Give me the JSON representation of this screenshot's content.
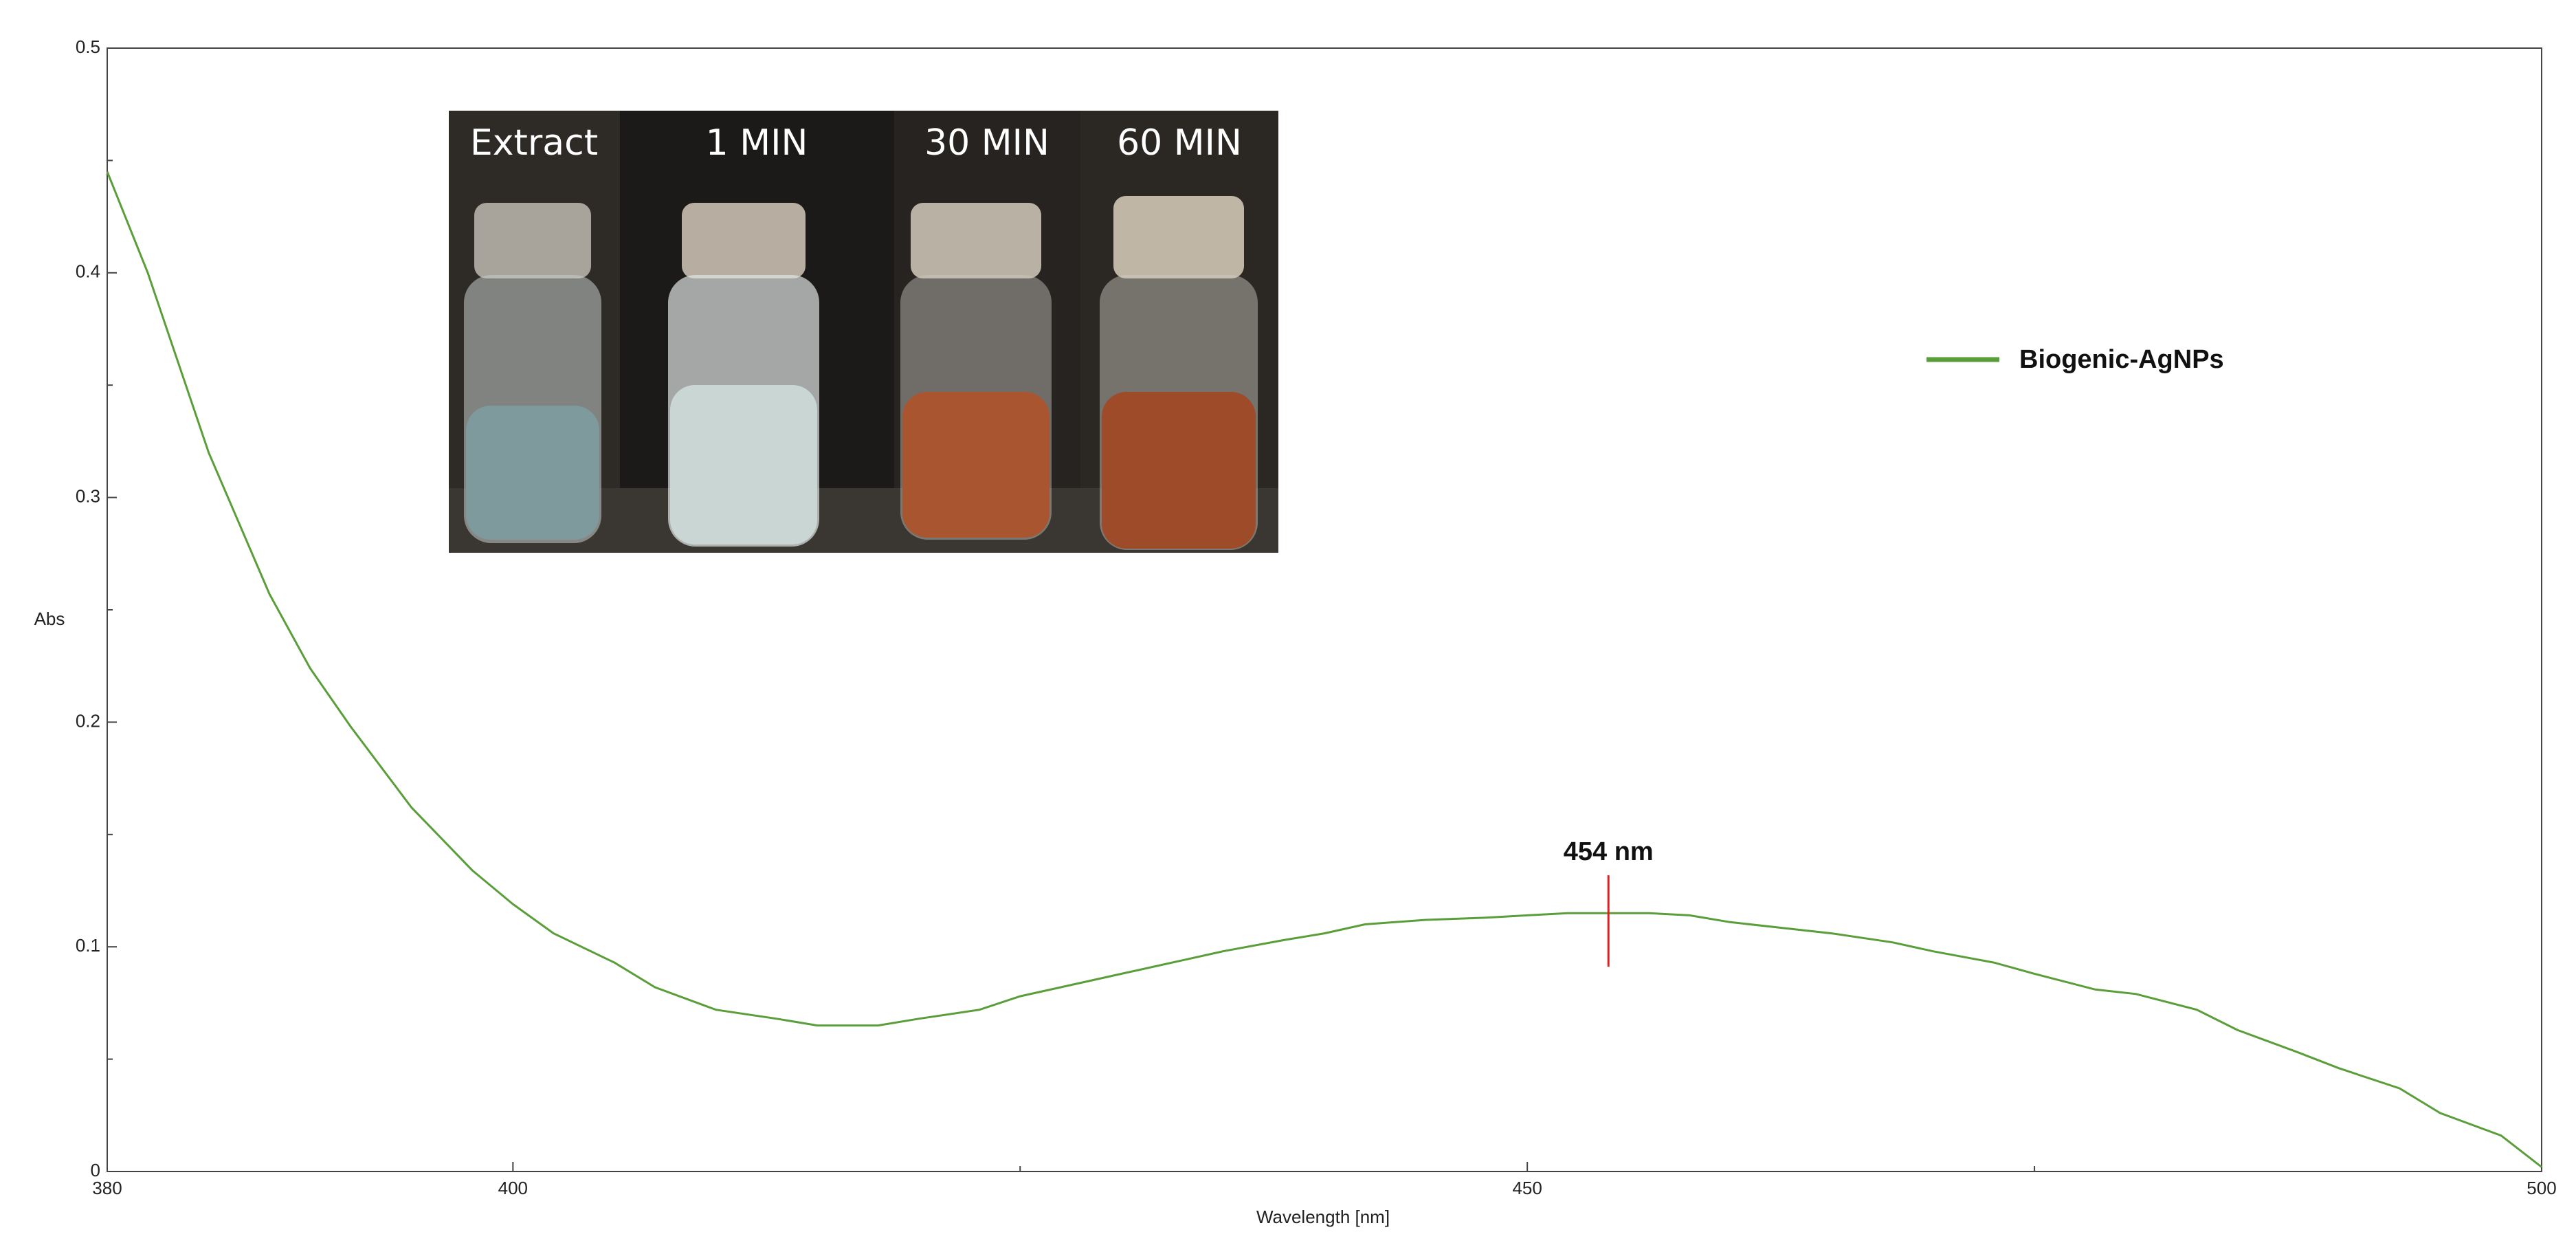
{
  "chart_data": {
    "type": "line",
    "x_label": "Wavelength [nm]",
    "y_label": "Abs",
    "x": [
      380,
      382,
      385,
      388,
      390,
      392,
      395,
      398,
      400,
      402,
      405,
      407,
      410,
      413,
      415,
      418,
      420,
      423,
      425,
      428,
      430,
      433,
      435,
      438,
      440,
      442,
      445,
      448,
      450,
      452,
      454,
      456,
      458,
      460,
      463,
      465,
      468,
      470,
      473,
      475,
      478,
      480,
      483,
      485,
      488,
      490,
      493,
      495,
      498,
      500
    ],
    "series": [
      {
        "name": "Biogenic-AgNPs",
        "color": "#5a9e3a",
        "values": [
          0.445,
          0.4,
          0.32,
          0.257,
          0.224,
          0.198,
          0.162,
          0.134,
          0.119,
          0.106,
          0.093,
          0.082,
          0.072,
          0.068,
          0.065,
          0.065,
          0.068,
          0.072,
          0.078,
          0.084,
          0.088,
          0.094,
          0.098,
          0.103,
          0.106,
          0.11,
          0.112,
          0.113,
          0.114,
          0.115,
          0.115,
          0.115,
          0.114,
          0.111,
          0.108,
          0.106,
          0.102,
          0.098,
          0.093,
          0.088,
          0.081,
          0.079,
          0.072,
          0.063,
          0.053,
          0.046,
          0.037,
          0.026,
          0.016,
          0.002
        ]
      }
    ],
    "xlim": [
      380,
      500
    ],
    "xticks": [
      380,
      400,
      450,
      500
    ],
    "xminor_ticks": [
      425,
      475
    ],
    "ylim": [
      0,
      0.5
    ],
    "yticks": [
      0,
      0.1,
      0.2,
      0.3,
      0.4,
      0.5
    ],
    "yminor_ticks": [
      0.05,
      0.15,
      0.25,
      0.35,
      0.45
    ],
    "annotation": {
      "text": "454 nm",
      "x": 454,
      "y": 0.115,
      "color": "#e02020"
    },
    "inset_labels": [
      "Extract",
      "1 MIN",
      "30 MIN",
      "60 MIN"
    ]
  }
}
